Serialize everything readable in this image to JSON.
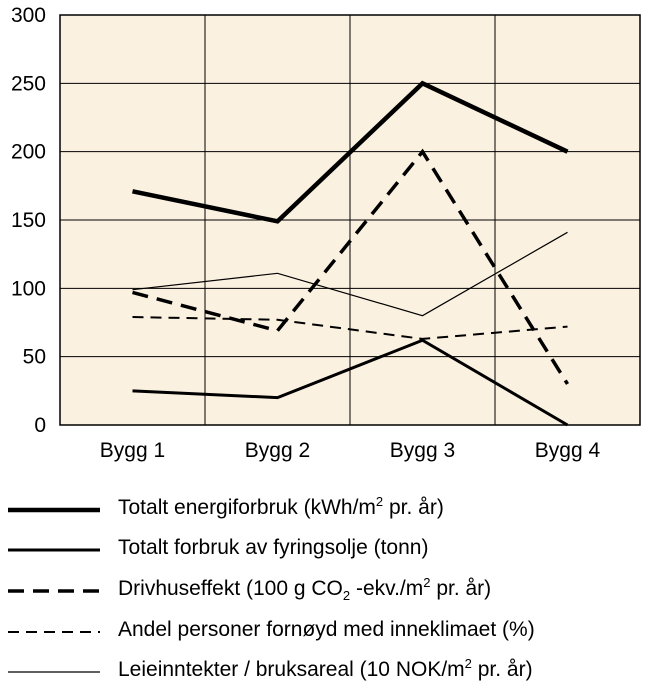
{
  "chart_data": {
    "type": "line",
    "categories": [
      "Bygg 1",
      "Bygg 2",
      "Bygg 3",
      "Bygg 4"
    ],
    "ylim": [
      0,
      300
    ],
    "yticks": [
      "0",
      "50",
      "100",
      "150",
      "200",
      "250",
      "300"
    ],
    "grid": true,
    "legend_position": "bottom",
    "background_color": "#fbf1e0",
    "series": [
      {
        "name": "Totalt energiforbruk (kWh/m2 pr. år)",
        "values": [
          171,
          149,
          250,
          200
        ],
        "style": "thick-solid"
      },
      {
        "name": "Totalt forbruk av fyringsolje (tonn)",
        "values": [
          25,
          20,
          62,
          0
        ],
        "style": "medium-solid"
      },
      {
        "name": "Drivhuseffekt (100 g CO2 -ekv./m2 pr. år)",
        "values": [
          97,
          69,
          200,
          30
        ],
        "style": "thick-dashed"
      },
      {
        "name": "Andel personer fornøyd med inneklimaet (%)",
        "values": [
          79,
          77,
          63,
          72
        ],
        "style": "thin-dashed"
      },
      {
        "name": "Leieinntekter / bruksareal (10 NOK/m2 pr. år)",
        "values": [
          99,
          111,
          80,
          141
        ],
        "style": "thin-solid"
      }
    ]
  },
  "legend": [
    {
      "pre": "Totalt energiforbruk (kWh/m",
      "sup": "2",
      "post": " pr. år)"
    },
    {
      "pre": "Totalt forbruk av fyringsolje (tonn)",
      "sup": "",
      "post": ""
    },
    {
      "pre": "Drivhuseffekt (100 g CO",
      "sub": "2",
      "mid": " -ekv./m",
      "sup": "2",
      "post": " pr. år)"
    },
    {
      "pre": "Andel personer fornøyd med inneklimaet (%)",
      "sup": "",
      "post": ""
    },
    {
      "pre": "Leieinntekter / bruksareal (10 NOK/m",
      "sup": "2",
      "post": " pr. år)"
    }
  ]
}
